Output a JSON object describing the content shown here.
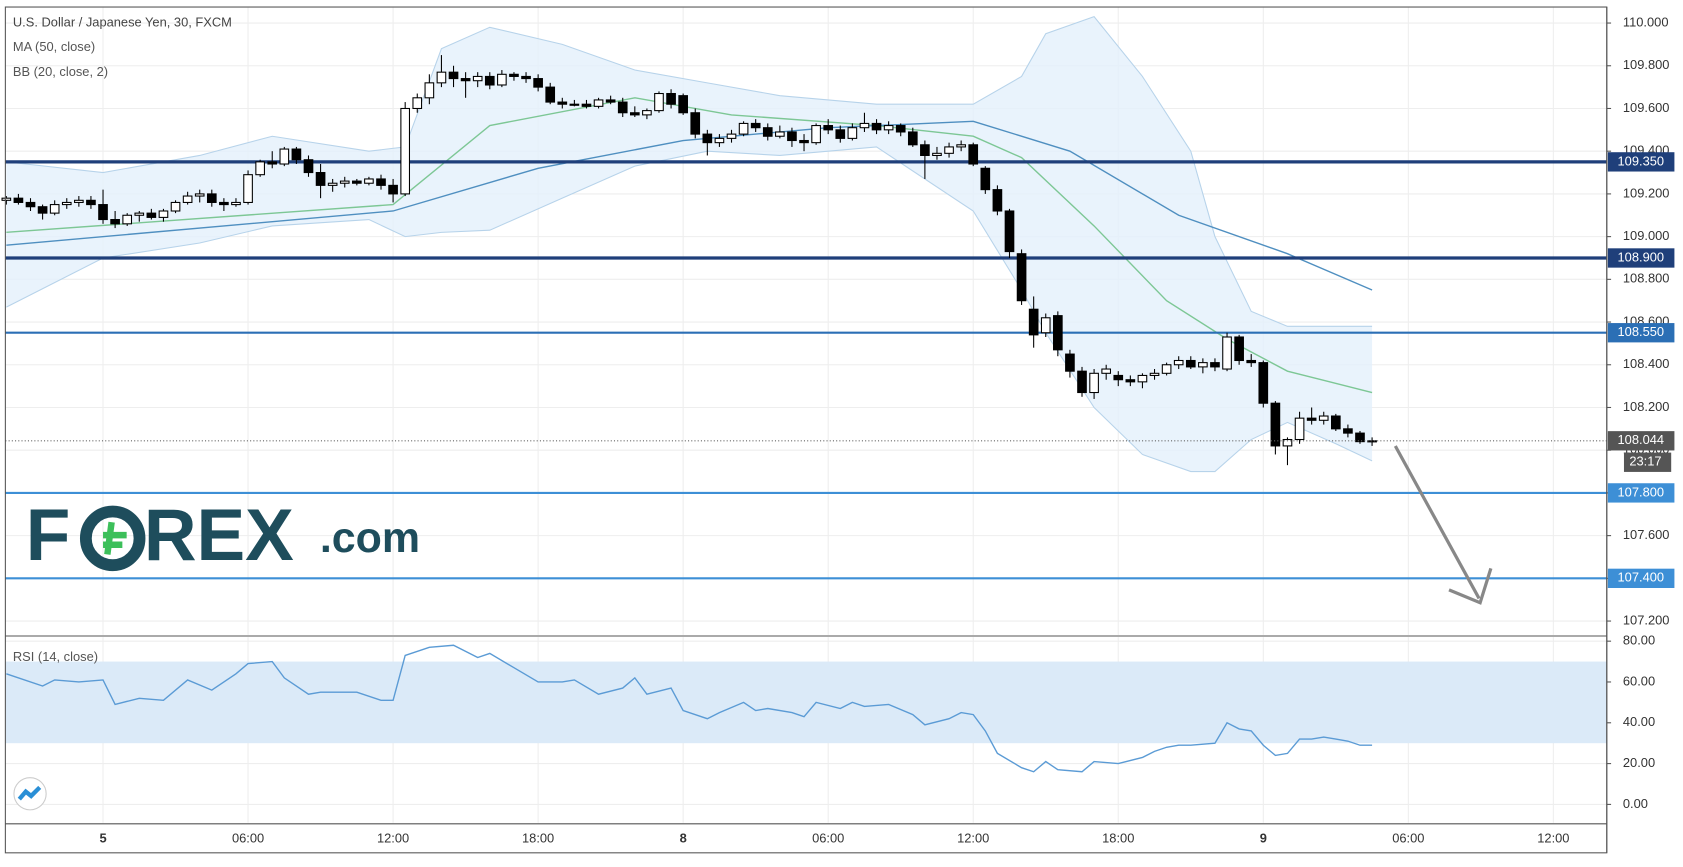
{
  "chart_data": {
    "type": "candlestick",
    "title": "U.S. Dollar / Japanese Yen, 30, FXCM",
    "logo": [
      "F",
      "REX",
      ".com"
    ],
    "xlim": [
      -0.08,
      132.42
    ],
    "xticks": [
      {
        "value": 8,
        "label": "5"
      },
      {
        "value": 20,
        "label": "06:00"
      },
      {
        "value": 32,
        "label": "12:00"
      },
      {
        "value": 44,
        "label": "18:00"
      },
      {
        "value": 56,
        "label": "8"
      },
      {
        "value": 68,
        "label": "06:00"
      },
      {
        "value": 80,
        "label": "12:00"
      },
      {
        "value": 92,
        "label": "18:00"
      },
      {
        "value": 104,
        "label": "9"
      },
      {
        "value": 116,
        "label": "06:00"
      },
      {
        "value": 128,
        "label": "12:00"
      }
    ],
    "ylim": [
      107.135,
      110.075
    ],
    "yticks": [
      {
        "value": 107.2,
        "label": "107.200"
      },
      {
        "value": 107.4,
        "label": "107.400"
      },
      {
        "value": 107.6,
        "label": "107.600"
      },
      {
        "value": 107.8,
        "label": "107.800"
      },
      {
        "value": 108.0,
        "label": "108.000"
      },
      {
        "value": 108.2,
        "label": "108.200"
      },
      {
        "value": 108.4,
        "label": "108.400"
      },
      {
        "value": 108.6,
        "label": "108.600"
      },
      {
        "value": 108.8,
        "label": "108.800"
      },
      {
        "value": 109.0,
        "label": "109.000"
      },
      {
        "value": 109.2,
        "label": "109.200"
      },
      {
        "value": 109.4,
        "label": "109.400"
      },
      {
        "value": 109.6,
        "label": "109.600"
      },
      {
        "value": 109.8,
        "label": "109.800"
      },
      {
        "value": 110.0,
        "label": "110.000"
      }
    ],
    "grid": true,
    "up_color": "#ffffff",
    "down_color": "#000000",
    "candles": [
      [
        109.17,
        109.19,
        109.15,
        109.18
      ],
      [
        109.18,
        109.2,
        109.15,
        109.16
      ],
      [
        109.16,
        109.18,
        109.12,
        109.14
      ],
      [
        109.14,
        109.15,
        109.08,
        109.11
      ],
      [
        109.11,
        109.17,
        109.1,
        109.15
      ],
      [
        109.15,
        109.18,
        109.13,
        109.16
      ],
      [
        109.16,
        109.19,
        109.14,
        109.17
      ],
      [
        109.17,
        109.19,
        109.13,
        109.15
      ],
      [
        109.15,
        109.22,
        109.06,
        109.08
      ],
      [
        109.08,
        109.12,
        109.04,
        109.06
      ],
      [
        109.06,
        109.11,
        109.05,
        109.1
      ],
      [
        109.1,
        109.12,
        109.07,
        109.11
      ],
      [
        109.11,
        109.13,
        109.08,
        109.09
      ],
      [
        109.09,
        109.13,
        109.07,
        109.12
      ],
      [
        109.12,
        109.17,
        109.11,
        109.16
      ],
      [
        109.16,
        109.21,
        109.15,
        109.19
      ],
      [
        109.19,
        109.22,
        109.16,
        109.2
      ],
      [
        109.2,
        109.22,
        109.14,
        109.16
      ],
      [
        109.16,
        109.18,
        109.12,
        109.15
      ],
      [
        109.15,
        109.18,
        109.14,
        109.16
      ],
      [
        109.16,
        109.31,
        109.15,
        109.29
      ],
      [
        109.29,
        109.36,
        109.28,
        109.35
      ],
      [
        109.35,
        109.4,
        109.32,
        109.34
      ],
      [
        109.34,
        109.42,
        109.33,
        109.41
      ],
      [
        109.41,
        109.42,
        109.34,
        109.36
      ],
      [
        109.36,
        109.38,
        109.28,
        109.3
      ],
      [
        109.3,
        109.34,
        109.18,
        109.24
      ],
      [
        109.24,
        109.27,
        109.21,
        109.25
      ],
      [
        109.25,
        109.28,
        109.23,
        109.26
      ],
      [
        109.26,
        109.27,
        109.24,
        109.25
      ],
      [
        109.25,
        109.28,
        109.24,
        109.27
      ],
      [
        109.27,
        109.29,
        109.22,
        109.24
      ],
      [
        109.24,
        109.27,
        109.16,
        109.2
      ],
      [
        109.2,
        109.63,
        109.19,
        109.6
      ],
      [
        109.6,
        109.67,
        109.58,
        109.65
      ],
      [
        109.65,
        109.76,
        109.62,
        109.72
      ],
      [
        109.72,
        109.85,
        109.7,
        109.77
      ],
      [
        109.77,
        109.8,
        109.7,
        109.74
      ],
      [
        109.74,
        109.77,
        109.65,
        109.73
      ],
      [
        109.73,
        109.77,
        109.7,
        109.75
      ],
      [
        109.75,
        109.77,
        109.69,
        109.71
      ],
      [
        109.71,
        109.78,
        109.7,
        109.76
      ],
      [
        109.76,
        109.77,
        109.73,
        109.75
      ],
      [
        109.75,
        109.77,
        109.72,
        109.74
      ],
      [
        109.74,
        109.76,
        109.68,
        109.7
      ],
      [
        109.7,
        109.72,
        109.62,
        109.63
      ],
      [
        109.63,
        109.65,
        109.6,
        109.62
      ],
      [
        109.62,
        109.64,
        109.61,
        109.62
      ],
      [
        109.62,
        109.64,
        109.6,
        109.61
      ],
      [
        109.61,
        109.65,
        109.6,
        109.64
      ],
      [
        109.64,
        109.66,
        109.62,
        109.63
      ],
      [
        109.63,
        109.65,
        109.56,
        109.58
      ],
      [
        109.58,
        109.61,
        109.56,
        109.57
      ],
      [
        109.57,
        109.6,
        109.55,
        109.59
      ],
      [
        109.59,
        109.68,
        109.58,
        109.67
      ],
      [
        109.67,
        109.69,
        109.6,
        109.62
      ],
      [
        109.66,
        109.67,
        109.57,
        109.58
      ],
      [
        109.58,
        109.6,
        109.46,
        109.48
      ],
      [
        109.48,
        109.5,
        109.38,
        109.44
      ],
      [
        109.44,
        109.48,
        109.42,
        109.46
      ],
      [
        109.46,
        109.5,
        109.44,
        109.48
      ],
      [
        109.48,
        109.54,
        109.47,
        109.53
      ],
      [
        109.53,
        109.55,
        109.49,
        109.51
      ],
      [
        109.51,
        109.53,
        109.45,
        109.47
      ],
      [
        109.47,
        109.52,
        109.46,
        109.49
      ],
      [
        109.49,
        109.51,
        109.42,
        109.45
      ],
      [
        109.45,
        109.48,
        109.4,
        109.44
      ],
      [
        109.44,
        109.53,
        109.43,
        109.52
      ],
      [
        109.52,
        109.55,
        109.48,
        109.5
      ],
      [
        109.5,
        109.52,
        109.44,
        109.46
      ],
      [
        109.46,
        109.53,
        109.45,
        109.51
      ],
      [
        109.51,
        109.58,
        109.49,
        109.53
      ],
      [
        109.53,
        109.55,
        109.48,
        109.5
      ],
      [
        109.5,
        109.54,
        109.48,
        109.52
      ],
      [
        109.52,
        109.53,
        109.47,
        109.49
      ],
      [
        109.49,
        109.51,
        109.42,
        109.43
      ],
      [
        109.43,
        109.45,
        109.27,
        109.38
      ],
      [
        109.38,
        109.42,
        109.36,
        109.39
      ],
      [
        109.39,
        109.44,
        109.37,
        109.42
      ],
      [
        109.42,
        109.45,
        109.4,
        109.43
      ],
      [
        109.43,
        109.44,
        109.33,
        109.34
      ],
      [
        109.32,
        109.33,
        109.2,
        109.22
      ],
      [
        109.22,
        109.24,
        109.1,
        109.12
      ],
      [
        109.12,
        109.13,
        108.9,
        108.93
      ],
      [
        108.92,
        108.94,
        108.68,
        108.7
      ],
      [
        108.66,
        108.72,
        108.48,
        108.54
      ],
      [
        108.55,
        108.64,
        108.53,
        108.62
      ],
      [
        108.63,
        108.65,
        108.44,
        108.47
      ],
      [
        108.45,
        108.47,
        108.34,
        108.37
      ],
      [
        108.37,
        108.39,
        108.25,
        108.27
      ],
      [
        108.27,
        108.38,
        108.24,
        108.36
      ],
      [
        108.36,
        108.4,
        108.33,
        108.38
      ],
      [
        108.35,
        108.37,
        108.3,
        108.33
      ],
      [
        108.33,
        108.35,
        108.3,
        108.32
      ],
      [
        108.32,
        108.36,
        108.29,
        108.35
      ],
      [
        108.35,
        108.38,
        108.33,
        108.36
      ],
      [
        108.36,
        108.41,
        108.35,
        108.4
      ],
      [
        108.4,
        108.44,
        108.38,
        108.42
      ],
      [
        108.42,
        108.44,
        108.38,
        108.39
      ],
      [
        108.39,
        108.43,
        108.36,
        108.41
      ],
      [
        108.41,
        108.43,
        108.37,
        108.39
      ],
      [
        108.38,
        108.55,
        108.37,
        108.53
      ],
      [
        108.53,
        108.54,
        108.4,
        108.42
      ],
      [
        108.42,
        108.45,
        108.39,
        108.41
      ],
      [
        108.41,
        108.42,
        108.2,
        108.22
      ],
      [
        108.22,
        108.23,
        107.98,
        108.02
      ],
      [
        108.02,
        108.06,
        107.93,
        108.05
      ],
      [
        108.05,
        108.18,
        108.03,
        108.15
      ],
      [
        108.15,
        108.2,
        108.12,
        108.14
      ],
      [
        108.14,
        108.18,
        108.12,
        108.16
      ],
      [
        108.16,
        108.17,
        108.09,
        108.1
      ],
      [
        108.1,
        108.12,
        108.06,
        108.08
      ],
      [
        108.08,
        108.09,
        108.03,
        108.04
      ],
      [
        108.04,
        108.06,
        108.02,
        108.044
      ]
    ],
    "ma": {
      "name": "MA (50, close)",
      "color": "#4f8fc0",
      "x": [
        0,
        32,
        44,
        56,
        68,
        80,
        88,
        97,
        106,
        113
      ],
      "values": [
        108.96,
        109.12,
        109.32,
        109.45,
        109.51,
        109.54,
        109.4,
        109.1,
        108.92,
        108.75
      ]
    },
    "bb": {
      "name": "BB (20, close, 2)",
      "band_color": "#e3f0fb",
      "edge_color": "#b7d3ea",
      "basis_color": "#7dc795",
      "x": [
        0,
        8,
        16,
        22,
        30,
        33,
        36,
        40,
        46,
        52,
        58,
        64,
        72,
        80,
        84,
        86,
        90,
        94,
        98,
        100,
        103,
        106,
        110,
        113
      ],
      "upper": [
        109.35,
        109.3,
        109.38,
        109.47,
        109.4,
        109.42,
        109.88,
        109.98,
        109.9,
        109.78,
        109.72,
        109.66,
        109.62,
        109.62,
        109.75,
        109.95,
        110.03,
        109.75,
        109.4,
        109.0,
        108.65,
        108.58,
        108.58,
        108.58
      ],
      "lower": [
        108.67,
        108.9,
        108.97,
        109.05,
        109.08,
        109.0,
        109.02,
        109.03,
        109.18,
        109.33,
        109.4,
        109.38,
        109.42,
        109.12,
        108.75,
        108.55,
        108.2,
        107.98,
        107.9,
        107.9,
        108.05,
        108.13,
        108.03,
        107.95
      ],
      "basis_x": [
        0,
        32,
        40,
        52,
        60,
        72,
        80,
        84,
        90,
        96,
        101,
        106,
        113
      ],
      "basis": [
        109.02,
        109.15,
        109.52,
        109.65,
        109.57,
        109.52,
        109.47,
        109.37,
        109.05,
        108.7,
        108.52,
        108.37,
        108.27
      ]
    },
    "levels": [
      {
        "value": 109.35,
        "label": "109.350",
        "color": "#1f3f7a"
      },
      {
        "value": 108.9,
        "label": "108.900",
        "color": "#1f3f7a"
      },
      {
        "value": 108.55,
        "label": "108.550",
        "color": "#2b6fb5"
      },
      {
        "value": 107.8,
        "label": "107.800",
        "color": "#3d8fd6"
      },
      {
        "value": 107.4,
        "label": "107.400",
        "color": "#3d8fd6"
      }
    ],
    "last_price": {
      "value": 108.044,
      "label": "108.044"
    },
    "countdown": "23:17",
    "rsi": {
      "name": "RSI (14, close)",
      "color": "#5b9bd5",
      "band_color": "#dbeaf8",
      "band": [
        30,
        70
      ],
      "ylim": [
        -9,
        82
      ],
      "yticks": [
        {
          "value": 0,
          "label": "0.00"
        },
        {
          "value": 20,
          "label": "20.00"
        },
        {
          "value": 40,
          "label": "40.00"
        },
        {
          "value": 60,
          "label": "60.00"
        },
        {
          "value": 80,
          "label": "80.00"
        }
      ],
      "x": [
        0,
        3,
        4,
        6,
        8,
        9,
        11,
        13,
        15,
        17,
        19,
        20,
        22,
        23,
        25,
        26,
        29,
        31,
        32,
        33,
        35,
        37,
        39,
        40,
        42,
        44,
        46,
        47,
        49,
        51,
        52,
        53,
        55,
        56,
        58,
        59,
        61,
        62,
        63,
        65,
        66,
        67,
        69,
        70,
        71,
        73,
        75,
        76,
        78,
        79,
        80,
        81,
        82,
        84,
        85,
        86,
        87,
        89,
        90,
        92,
        94,
        95,
        96,
        97,
        98,
        100,
        101,
        102,
        103,
        104,
        105,
        106,
        107,
        108,
        109,
        110,
        111,
        112,
        113
      ],
      "values": [
        64,
        58,
        61,
        60,
        61,
        49,
        52,
        51,
        61,
        56,
        64,
        69,
        70,
        62,
        54,
        55,
        55,
        51,
        51,
        73,
        77,
        78,
        72,
        74,
        67,
        60,
        60,
        61,
        54,
        57,
        62,
        54,
        57,
        46,
        42,
        45,
        50,
        46,
        47,
        45,
        43,
        50,
        47,
        50,
        48,
        49,
        44,
        39,
        42,
        45,
        44,
        36,
        25,
        18,
        16,
        21,
        17,
        16,
        21,
        20,
        23,
        26,
        28,
        29,
        29,
        30,
        40,
        37,
        36,
        29,
        24,
        25,
        32,
        32,
        33,
        32,
        31,
        29,
        29
      ]
    }
  }
}
